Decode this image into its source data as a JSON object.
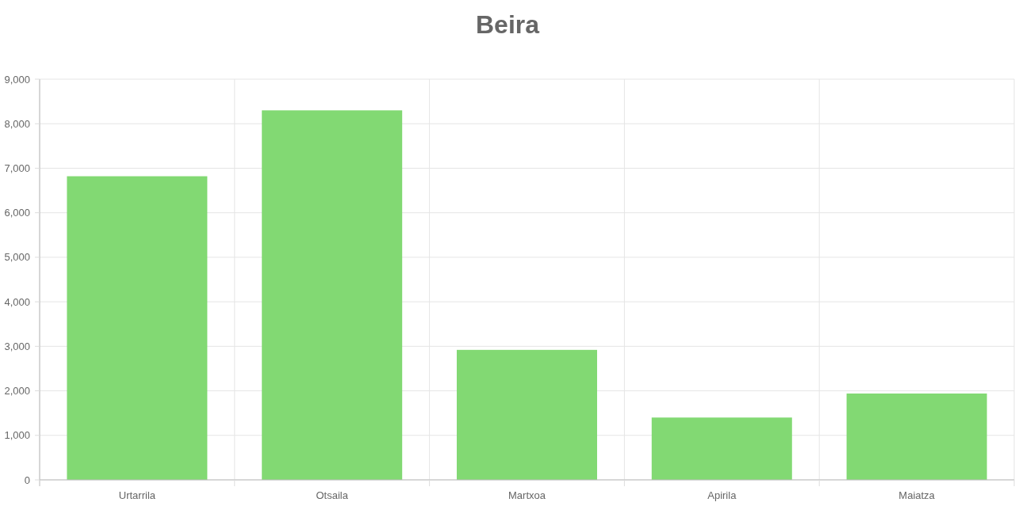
{
  "chart_data": {
    "type": "bar",
    "title": "Beira",
    "categories": [
      "Urtarrila",
      "Otsaila",
      "Martxoa",
      "Apirila",
      "Maiatza"
    ],
    "values": [
      6820,
      8300,
      2920,
      1400,
      1940
    ],
    "color": "#82d973",
    "ylim": [
      0,
      9000
    ],
    "yticks": [
      {
        "value": 0,
        "label": "0"
      },
      {
        "value": 1000,
        "label": "1,000"
      },
      {
        "value": 2000,
        "label": "2,000"
      },
      {
        "value": 3000,
        "label": "3,000"
      },
      {
        "value": 4000,
        "label": "4,000"
      },
      {
        "value": 5000,
        "label": "5,000"
      },
      {
        "value": 6000,
        "label": "6,000"
      },
      {
        "value": 7000,
        "label": "7,000"
      },
      {
        "value": 8000,
        "label": "8,000"
      },
      {
        "value": 9000,
        "label": "9,000"
      }
    ],
    "grid": true
  }
}
